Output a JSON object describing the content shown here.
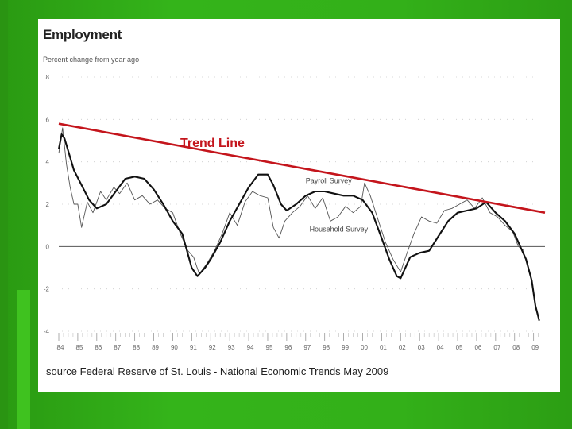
{
  "chart_data": {
    "type": "line",
    "title": "Employment",
    "ylabel": "Percent change from year ago",
    "ylim": [
      -4,
      8
    ],
    "yticks": [
      -4,
      -2,
      0,
      2,
      4,
      6,
      8
    ],
    "xlim": [
      1984,
      2009.6
    ],
    "x_tick_labels": [
      "84",
      "85",
      "86",
      "87",
      "88",
      "89",
      "90",
      "91",
      "92",
      "93",
      "94",
      "95",
      "96",
      "97",
      "98",
      "99",
      "00",
      "01",
      "02",
      "03",
      "04",
      "05",
      "06",
      "07",
      "08",
      "09"
    ],
    "series": [
      {
        "name": "Payroll Survey",
        "color": "#111111",
        "x": [
          1984.0,
          1984.15,
          1984.3,
          1984.5,
          1984.8,
          1985.2,
          1985.6,
          1986.0,
          1986.5,
          1987.0,
          1987.5,
          1988.0,
          1988.5,
          1989.0,
          1989.5,
          1990.0,
          1990.5,
          1991.0,
          1991.3,
          1991.7,
          1992.0,
          1992.5,
          1993.0,
          1993.5,
          1994.0,
          1994.5,
          1995.0,
          1995.3,
          1995.7,
          1996.0,
          1996.5,
          1997.0,
          1997.5,
          1998.0,
          1998.5,
          1999.0,
          1999.5,
          2000.0,
          2000.5,
          2001.0,
          2001.4,
          2001.8,
          2002.0,
          2002.5,
          2003.0,
          2003.5,
          2004.0,
          2004.5,
          2005.0,
          2005.5,
          2006.0,
          2006.5,
          2007.0,
          2007.5,
          2008.0,
          2008.3,
          2008.6,
          2008.9,
          2009.1,
          2009.3
        ],
        "y": [
          4.6,
          5.3,
          5.1,
          4.5,
          3.6,
          2.9,
          2.2,
          1.8,
          2.0,
          2.6,
          3.2,
          3.3,
          3.2,
          2.7,
          2.0,
          1.2,
          0.6,
          -1.0,
          -1.4,
          -1.0,
          -0.6,
          0.2,
          1.2,
          2.0,
          2.8,
          3.4,
          3.4,
          2.9,
          2.0,
          1.7,
          2.0,
          2.4,
          2.6,
          2.6,
          2.5,
          2.4,
          2.4,
          2.2,
          1.6,
          0.4,
          -0.6,
          -1.4,
          -1.5,
          -0.5,
          -0.3,
          -0.2,
          0.5,
          1.2,
          1.6,
          1.7,
          1.8,
          2.1,
          1.6,
          1.2,
          0.6,
          0.0,
          -0.6,
          -1.6,
          -2.8,
          -3.5
        ]
      },
      {
        "name": "Household Survey",
        "color": "#555555",
        "x": [
          1984.0,
          1984.2,
          1984.4,
          1984.6,
          1984.8,
          1985.0,
          1985.2,
          1985.5,
          1985.8,
          1986.2,
          1986.5,
          1986.9,
          1987.2,
          1987.6,
          1988.0,
          1988.4,
          1988.8,
          1989.2,
          1989.6,
          1990.0,
          1990.4,
          1990.8,
          1991.1,
          1991.4,
          1991.8,
          1992.2,
          1992.6,
          1993.0,
          1993.4,
          1993.8,
          1994.2,
          1994.6,
          1995.0,
          1995.3,
          1995.6,
          1995.9,
          1996.3,
          1996.7,
          1997.1,
          1997.5,
          1997.9,
          1998.3,
          1998.7,
          1999.1,
          1999.5,
          1999.9,
          2000.1,
          2000.4,
          2000.8,
          2001.2,
          2001.6,
          2002.0,
          2002.3,
          2002.7,
          2003.1,
          2003.5,
          2003.9,
          2004.3,
          2004.7,
          2005.1,
          2005.5,
          2005.9,
          2006.3,
          2006.7,
          2007.1,
          2007.5,
          2007.9,
          2008.2,
          2008.5
        ],
        "y": [
          4.4,
          5.6,
          3.9,
          2.8,
          2.0,
          2.0,
          0.9,
          2.1,
          1.6,
          2.6,
          2.2,
          2.8,
          2.5,
          3.0,
          2.2,
          2.4,
          2.0,
          2.2,
          1.8,
          1.6,
          0.6,
          -0.2,
          -0.5,
          -1.3,
          -0.8,
          -0.2,
          0.6,
          1.6,
          1.0,
          2.1,
          2.6,
          2.4,
          2.3,
          0.9,
          0.4,
          1.2,
          1.6,
          1.9,
          2.4,
          1.8,
          2.3,
          1.2,
          1.4,
          1.9,
          1.6,
          1.9,
          3.0,
          2.4,
          1.3,
          0.2,
          -0.6,
          -1.2,
          -0.4,
          0.6,
          1.4,
          1.2,
          1.1,
          1.7,
          1.8,
          2.0,
          2.2,
          1.8,
          2.3,
          1.6,
          1.4,
          1.0,
          0.7,
          0.0,
          -0.2
        ]
      },
      {
        "name": "Trend Line",
        "color": "#c4151c",
        "x": [
          1984.0,
          2009.6
        ],
        "y": [
          5.8,
          1.6
        ]
      }
    ],
    "annotations": [
      {
        "text": "Trend Line",
        "x": 1990.4,
        "y": 4.7
      },
      {
        "text": "Payroll Survey",
        "x": 1997.0,
        "y": 3.0
      },
      {
        "text": "Household Survey",
        "x": 1997.2,
        "y": 0.7
      }
    ],
    "reference_line_y": 0,
    "legend": "none",
    "grid": "y-dashed"
  },
  "source_text": "source Federal Reserve of St. Louis - National Economic Trends May 2009"
}
